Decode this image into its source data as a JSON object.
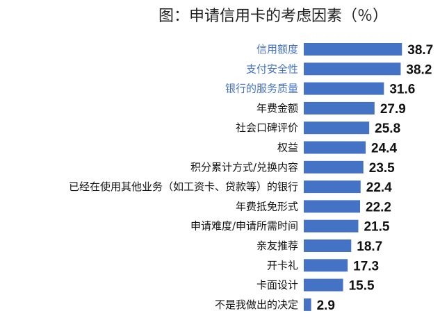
{
  "chart_data": {
    "type": "bar",
    "orientation": "horizontal",
    "title": "图：申请信用卡的考虑因素（％）",
    "categories": [
      "信用额度",
      "支付安全性",
      "银行的服务质量",
      "年费金额",
      "社会口碑评价",
      "权益",
      "积分累计方式/兑换内容",
      "已经在使用其他业务（如工资卡、贷款等）的银行",
      "年费抵免形式",
      "申请难度/申请所需时间",
      "亲友推荐",
      "开卡礼",
      "卡面设计",
      "不是我做出的决定"
    ],
    "values": [
      38.7,
      38.2,
      31.6,
      27.9,
      25.8,
      24.4,
      23.5,
      22.4,
      22.2,
      21.5,
      18.7,
      17.3,
      15.5,
      2.9
    ],
    "value_labels": [
      "38.7",
      "38.2",
      "31.6",
      "27.9",
      "25.8",
      "24.4",
      "23.5",
      "22.4",
      "22.2",
      "21.5",
      "18.7",
      "17.3",
      "15.5",
      "2.9"
    ],
    "highlighted_count": 3,
    "xlim": [
      0,
      40
    ],
    "grid": false,
    "legend": "none",
    "colors": {
      "bar": "#4472C4",
      "highlight_label": "#4472C4",
      "label": "#111111",
      "value": "#111111"
    }
  }
}
